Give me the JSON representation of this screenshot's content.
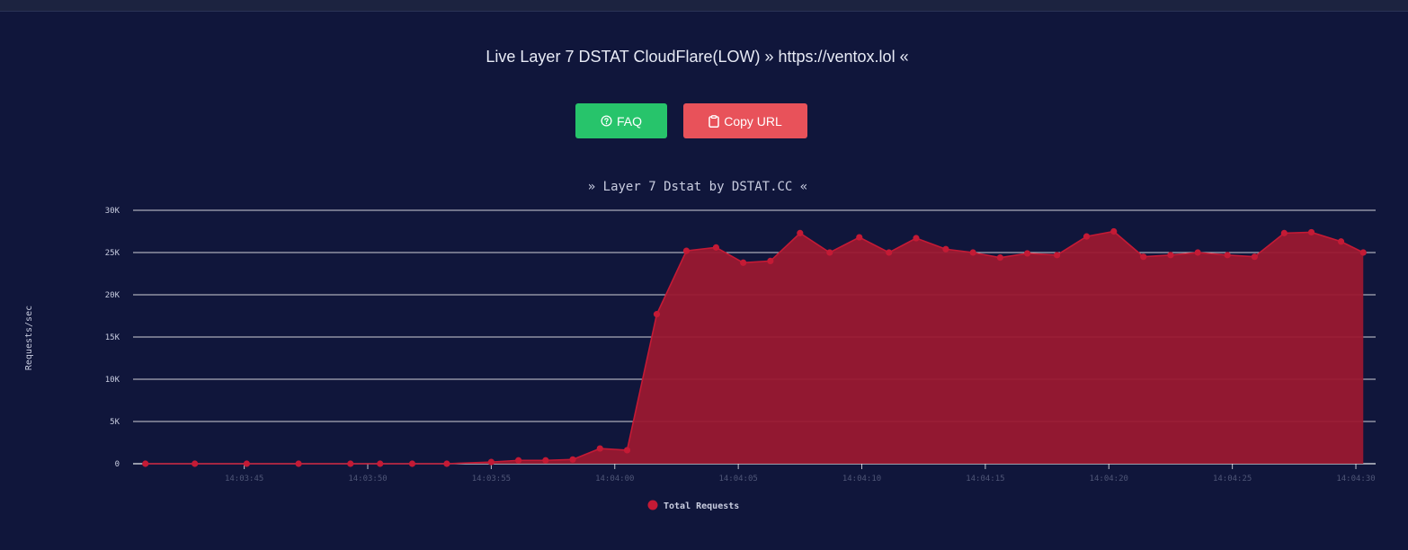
{
  "header": {
    "title": "Live Layer 7 DSTAT CloudFlare(LOW) » https://ventox.lol «"
  },
  "buttons": {
    "faq_label": "FAQ",
    "faq_icon": "question-circle-icon",
    "copy_label": "Copy URL",
    "copy_icon": "clipboard-icon",
    "faq_color": "#27c46b",
    "copy_color": "#e8525a"
  },
  "colors": {
    "background": "#10163b",
    "series_fill": "#9a1830",
    "series_line": "#c41a35",
    "gridline": "#ffffff"
  },
  "chart_data": {
    "type": "area",
    "title": "» Layer 7 Dstat by DSTAT.CC «",
    "ylabel": "Requests/sec",
    "xlabel": "",
    "ylim": [
      0,
      30000
    ],
    "yticks": [
      0,
      5000,
      10000,
      15000,
      20000,
      25000,
      30000
    ],
    "ytick_labels": [
      "0",
      "5K",
      "10K",
      "15K",
      "20K",
      "25K",
      "30K"
    ],
    "xticks": [
      "14:03:45",
      "14:03:50",
      "14:03:55",
      "14:04:00",
      "14:04:05",
      "14:04:10",
      "14:04:15",
      "14:04:20",
      "14:04:25",
      "14:04:30"
    ],
    "xlim": [
      "14:03:40.5",
      "14:04:30.8"
    ],
    "grid": true,
    "legend_position": "bottom-center",
    "series": [
      {
        "name": "Total Requests",
        "x": [
          "14:03:41.0",
          "14:03:43.0",
          "14:03:45.1",
          "14:03:47.2",
          "14:03:49.3",
          "14:03:50.5",
          "14:03:51.8",
          "14:03:53.2",
          "14:03:55.0",
          "14:03:56.1",
          "14:03:57.2",
          "14:03:58.3",
          "14:03:59.4",
          "14:04:00.5",
          "14:04:01.7",
          "14:04:02.9",
          "14:04:04.1",
          "14:04:05.2",
          "14:04:06.3",
          "14:04:07.5",
          "14:04:08.7",
          "14:04:09.9",
          "14:04:11.1",
          "14:04:12.2",
          "14:04:13.4",
          "14:04:14.5",
          "14:04:15.6",
          "14:04:16.7",
          "14:04:17.9",
          "14:04:19.1",
          "14:04:20.2",
          "14:04:21.4",
          "14:04:22.5",
          "14:04:23.6",
          "14:04:24.8",
          "14:04:25.9",
          "14:04:27.1",
          "14:04:28.2",
          "14:04:29.4",
          "14:04:30.3"
        ],
        "values": [
          0,
          0,
          0,
          0,
          0,
          0,
          0,
          0,
          200,
          400,
          400,
          500,
          1800,
          1600,
          17700,
          25200,
          25600,
          23800,
          24000,
          27300,
          25000,
          26800,
          25000,
          26700,
          25400,
          25000,
          24400,
          24900,
          24700,
          26900,
          27500,
          24500,
          24700,
          25000,
          24700,
          24500,
          27300,
          27400,
          26300,
          25000
        ]
      }
    ]
  }
}
